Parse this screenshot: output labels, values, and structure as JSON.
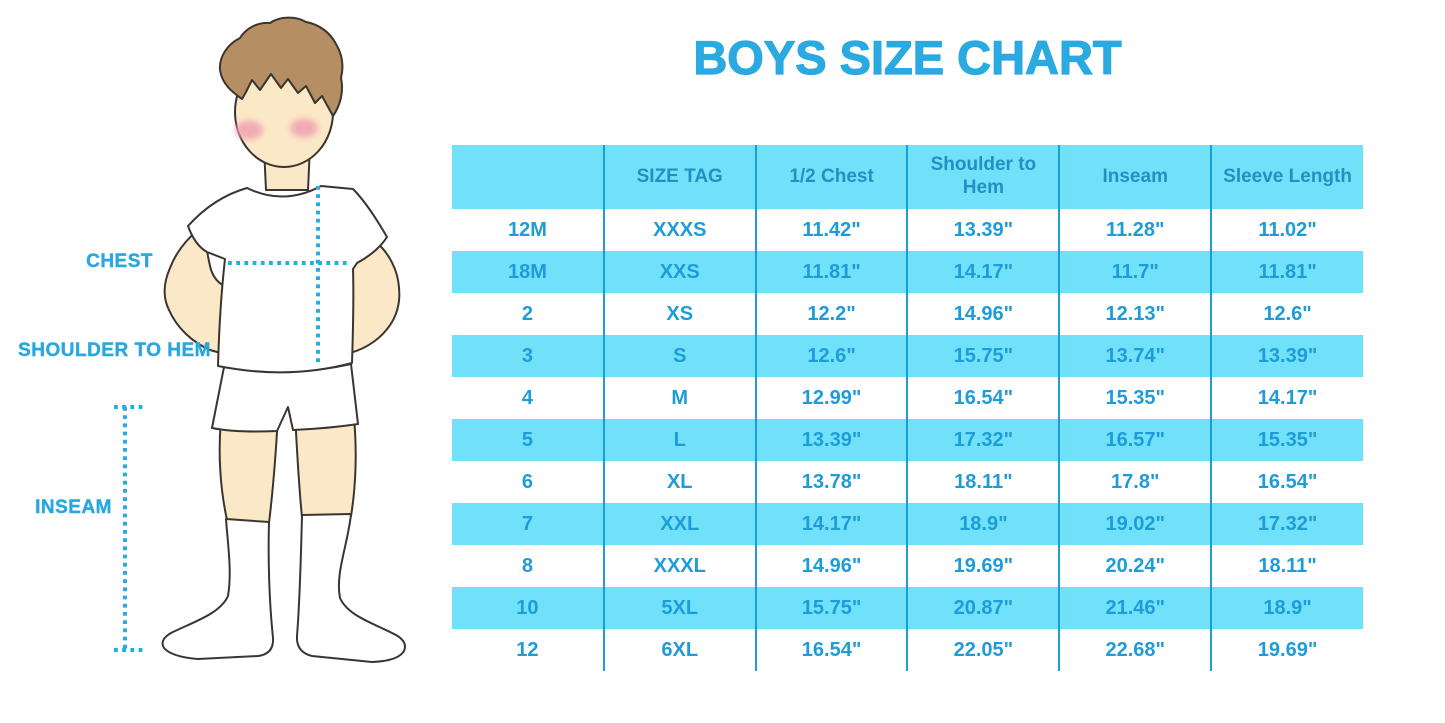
{
  "title": "BOYS SIZE CHART",
  "figure": {
    "description": "line illustration of a boy in white t-shirt, shorts and knee socks with dotted measurement guides",
    "labels": {
      "chest": "CHEST",
      "shoulder_to_hem": "SHOULDER TO HEM",
      "inseam": "INSEAM"
    }
  },
  "chart_data": {
    "type": "table",
    "title": "BOYS SIZE CHART",
    "units": "inches",
    "columns": [
      "",
      "SIZE TAG",
      "1/2 Chest",
      "Shoulder to Hem",
      "Inseam",
      "Sleeve Length"
    ],
    "rows": [
      [
        "12M",
        "XXXS",
        "11.42\"",
        "13.39\"",
        "11.28\"",
        "11.02\""
      ],
      [
        "18M",
        "XXS",
        "11.81\"",
        "14.17\"",
        "11.7\"",
        "11.81\""
      ],
      [
        "2",
        "XS",
        "12.2\"",
        "14.96\"",
        "12.13\"",
        "12.6\""
      ],
      [
        "3",
        "S",
        "12.6\"",
        "15.75\"",
        "13.74\"",
        "13.39\""
      ],
      [
        "4",
        "M",
        "12.99\"",
        "16.54\"",
        "15.35\"",
        "14.17\""
      ],
      [
        "5",
        "L",
        "13.39\"",
        "17.32\"",
        "16.57\"",
        "15.35\""
      ],
      [
        "6",
        "XL",
        "13.78\"",
        "18.11\"",
        "17.8\"",
        "16.54\""
      ],
      [
        "7",
        "XXL",
        "14.17\"",
        "18.9\"",
        "19.02\"",
        "17.32\""
      ],
      [
        "8",
        "XXXL",
        "14.96\"",
        "19.69\"",
        "20.24\"",
        "18.11\""
      ],
      [
        "10",
        "5XL",
        "15.75\"",
        "20.87\"",
        "21.46\"",
        "18.9\""
      ],
      [
        "12",
        "6XL",
        "16.54\"",
        "22.05\"",
        "22.68\"",
        "19.69\""
      ]
    ],
    "layout": "header row cyan, data rows alternate white and cyan, blue column divider lines, no outer border"
  },
  "colors": {
    "title_blue": "#2BA9E1",
    "label_blue": "#29A8E0",
    "measure_dotted": "#29ABE2",
    "stripe_cyan": "#71E1FA",
    "header_text": "#2191C4",
    "cell_text": "#1E9CD9",
    "divider": "#1E9CD9",
    "skin": "#FBE8C6",
    "hair": "#B58F63",
    "blush": "#EFA3B3",
    "outline": "#3A3530"
  }
}
